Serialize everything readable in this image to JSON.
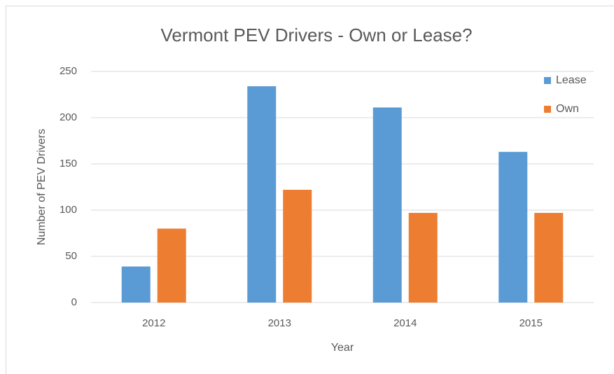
{
  "chart_data": {
    "type": "bar",
    "title": "Vermont PEV Drivers - Own or Lease?",
    "x_label": "Year",
    "y_label": "Number  of PEV Drivers",
    "categories": [
      "2012",
      "2013",
      "2014",
      "2015"
    ],
    "series": [
      {
        "name": "Lease",
        "color": "#5b9bd5",
        "values": [
          39,
          234,
          211,
          163
        ]
      },
      {
        "name": "Own",
        "color": "#ed7d31",
        "values": [
          80,
          122,
          97,
          97
        ]
      }
    ],
    "ylim": [
      0,
      250
    ],
    "yticks": [
      0,
      50,
      100,
      150,
      200,
      250
    ],
    "grid": true,
    "legend": "top-right"
  }
}
